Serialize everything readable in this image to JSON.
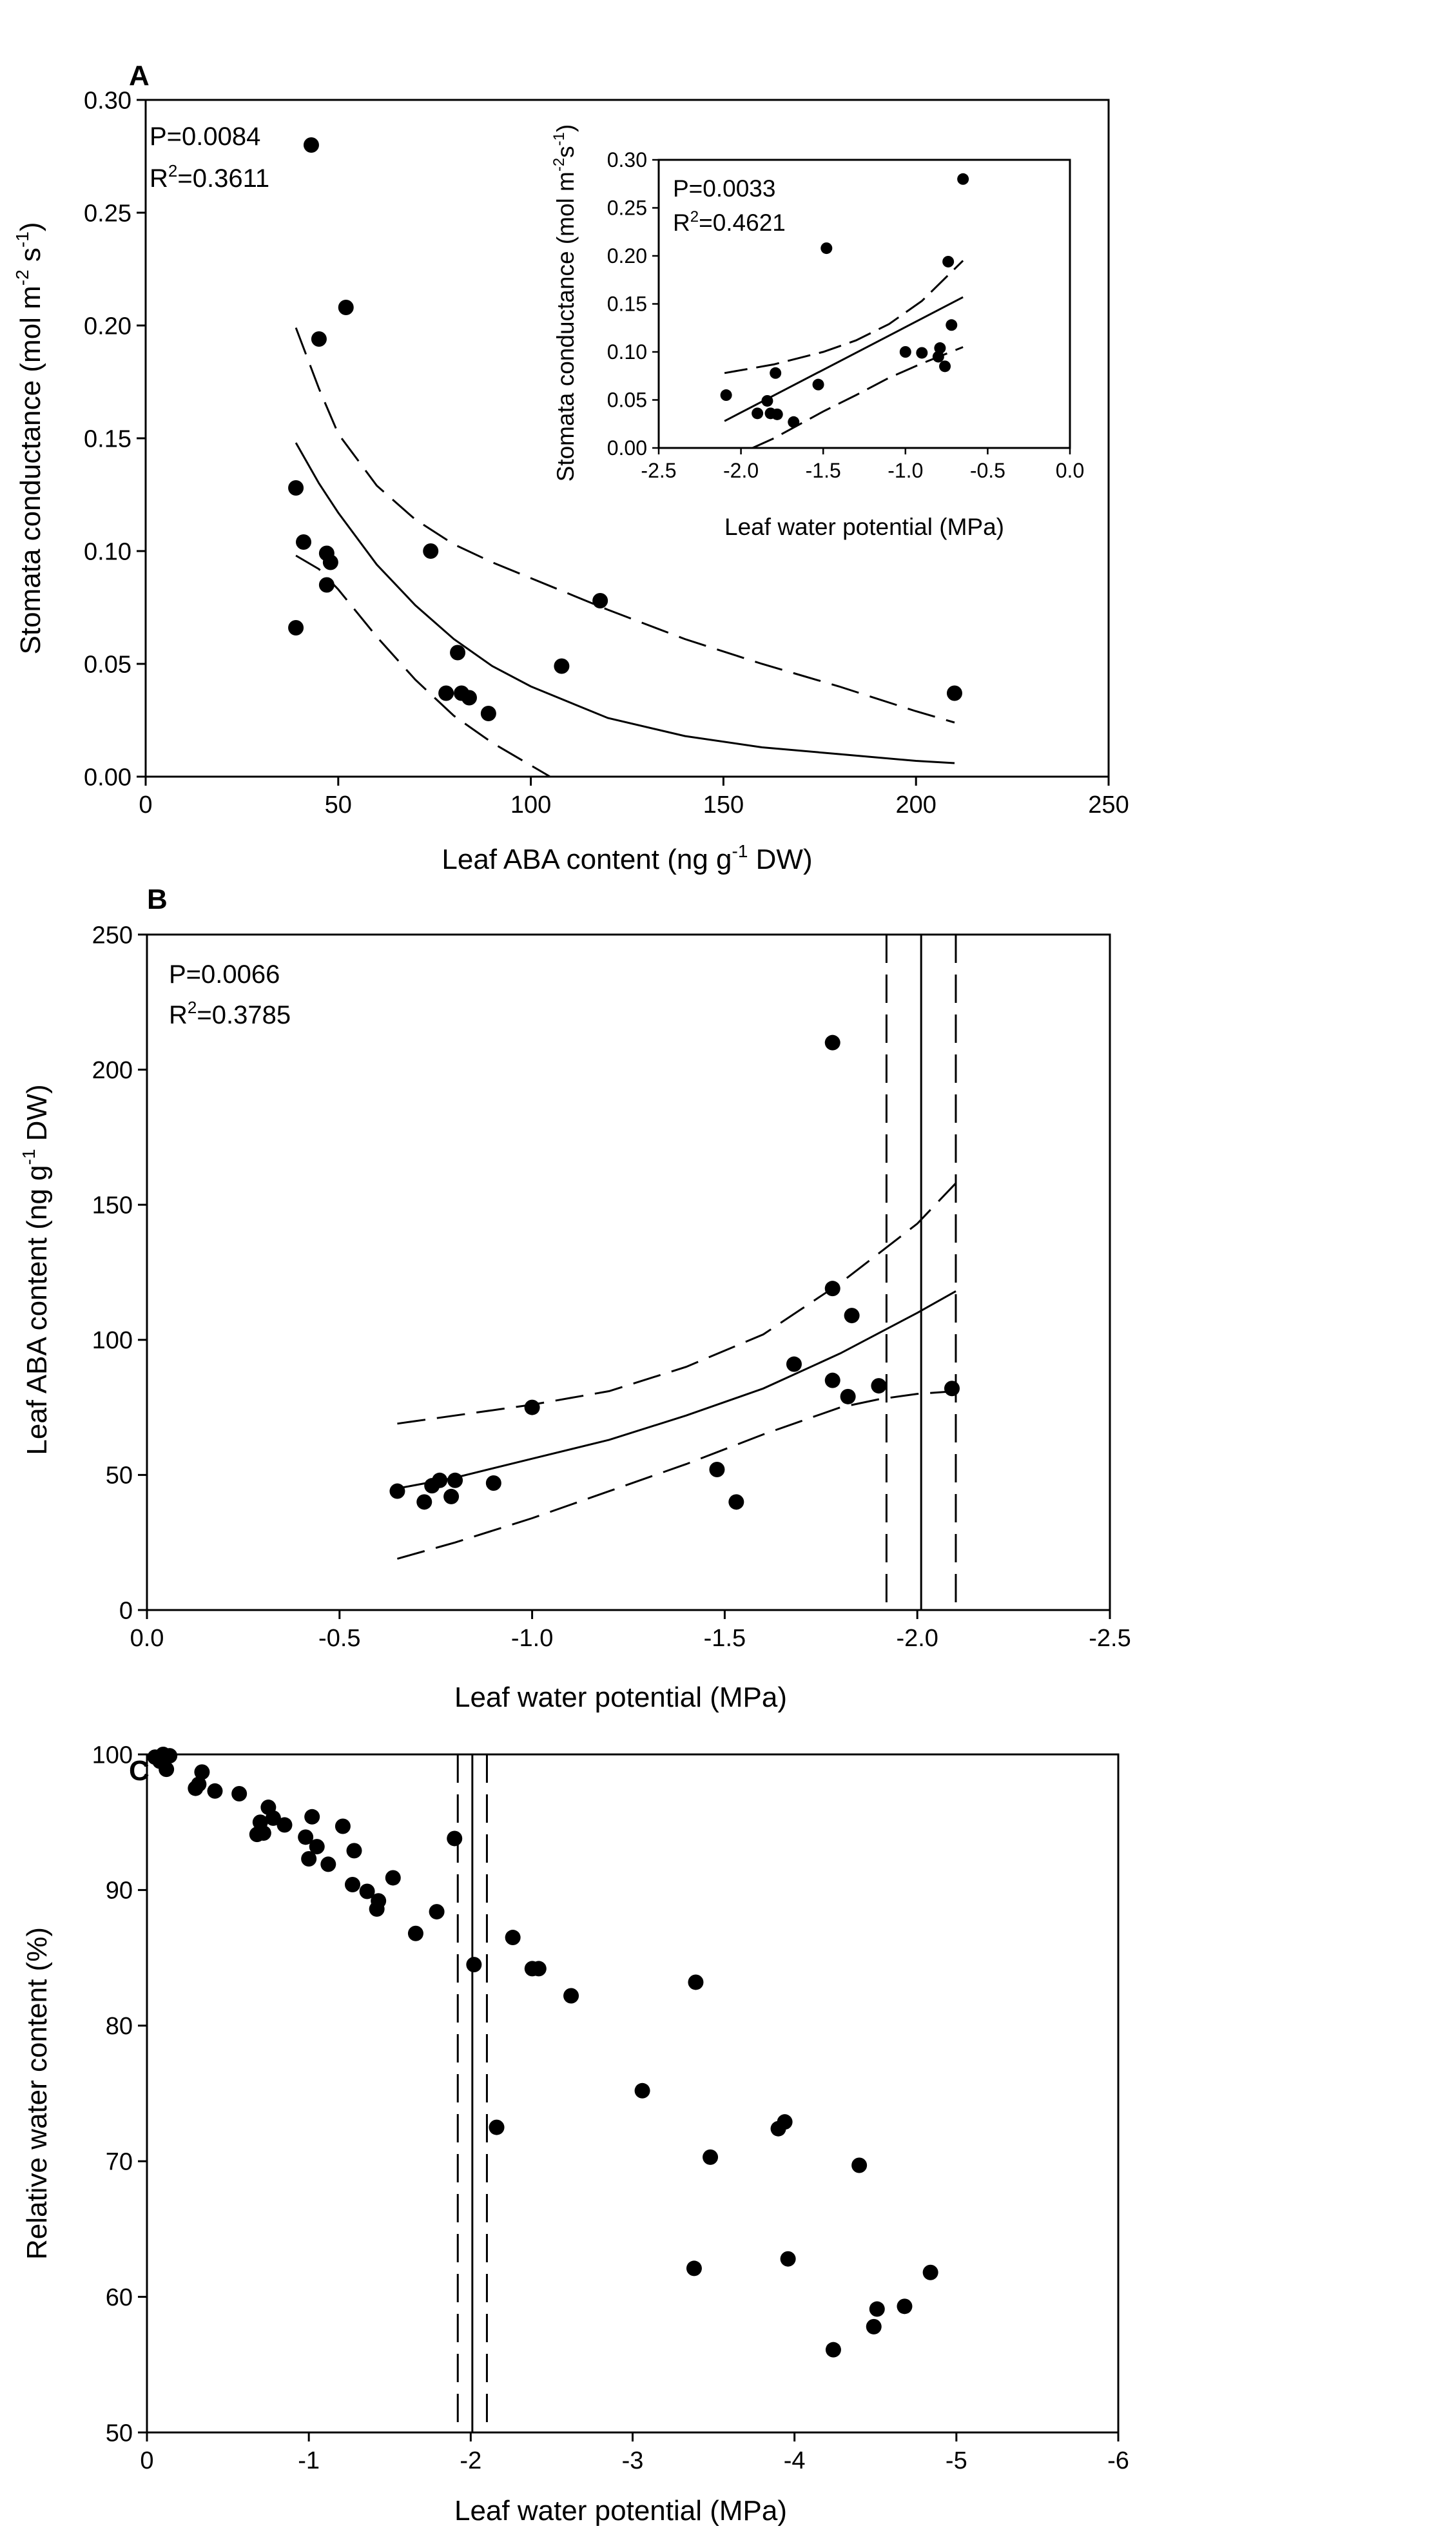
{
  "chart_data": [
    {
      "panel": "A",
      "type": "scatter",
      "title": "",
      "xlabel": "Leaf ABA content (ng g^-1 DW)",
      "ylabel": "Stomata conductance (mol m^-2 s^-1)",
      "xlim": [
        0,
        250
      ],
      "ylim": [
        0,
        0.3
      ],
      "xticks": [
        "0",
        "50",
        "100",
        "150",
        "200",
        "250"
      ],
      "yticks": [
        "0.00",
        "0.05",
        "0.10",
        "0.15",
        "0.20",
        "0.25",
        "0.30"
      ],
      "stats": [
        "P=0.0084",
        "R2=0.3611"
      ],
      "grid": false,
      "points": [
        {
          "x": 43,
          "y": 0.28
        },
        {
          "x": 45,
          "y": 0.194
        },
        {
          "x": 52,
          "y": 0.208
        },
        {
          "x": 39,
          "y": 0.128
        },
        {
          "x": 41,
          "y": 0.104
        },
        {
          "x": 47,
          "y": 0.099
        },
        {
          "x": 48,
          "y": 0.095
        },
        {
          "x": 47,
          "y": 0.085
        },
        {
          "x": 39,
          "y": 0.066
        },
        {
          "x": 74,
          "y": 0.1
        },
        {
          "x": 118,
          "y": 0.078
        },
        {
          "x": 81,
          "y": 0.055
        },
        {
          "x": 108,
          "y": 0.049
        },
        {
          "x": 78,
          "y": 0.037
        },
        {
          "x": 82,
          "y": 0.037
        },
        {
          "x": 84,
          "y": 0.035
        },
        {
          "x": 89,
          "y": 0.028
        },
        {
          "x": 210,
          "y": 0.037
        }
      ],
      "fit": {
        "x": [
          39,
          45,
          50,
          60,
          70,
          80,
          90,
          100,
          120,
          140,
          160,
          180,
          200,
          210
        ],
        "y": [
          0.148,
          0.13,
          0.117,
          0.094,
          0.076,
          0.061,
          0.049,
          0.04,
          0.026,
          0.018,
          0.013,
          0.01,
          0.007,
          0.006
        ]
      },
      "ci_upper": {
        "x": [
          39,
          45,
          50,
          60,
          70,
          80,
          90,
          100,
          120,
          140,
          160,
          180,
          200,
          210
        ],
        "y": [
          0.199,
          0.172,
          0.152,
          0.129,
          0.114,
          0.103,
          0.095,
          0.088,
          0.074,
          0.061,
          0.05,
          0.04,
          0.029,
          0.024
        ]
      },
      "ci_lower": {
        "x": [
          39,
          45,
          50,
          60,
          70,
          80,
          90,
          100,
          105
        ],
        "y": [
          0.098,
          0.092,
          0.083,
          0.062,
          0.043,
          0.027,
          0.015,
          0.005,
          0.0
        ]
      },
      "inset": {
        "type": "scatter",
        "xlabel": "Leaf water potential (MPa)",
        "ylabel": "Stomata conductance (mol m^-2 s^-1)",
        "xlim": [
          -2.5,
          0.0
        ],
        "ylim": [
          0,
          0.3
        ],
        "xticks": [
          "-2.5",
          "-2.0",
          "-1.5",
          "-1.0",
          "-0.5",
          "0.0"
        ],
        "yticks": [
          "0.00",
          "0.05",
          "0.10",
          "0.15",
          "0.20",
          "0.25",
          "0.30"
        ],
        "stats": [
          "P=0.0033",
          "R2=0.4621"
        ],
        "points": [
          {
            "x": -2.09,
            "y": 0.055
          },
          {
            "x": -1.9,
            "y": 0.036
          },
          {
            "x": -1.84,
            "y": 0.049
          },
          {
            "x": -1.82,
            "y": 0.036
          },
          {
            "x": -1.79,
            "y": 0.078
          },
          {
            "x": -1.78,
            "y": 0.035
          },
          {
            "x": -1.68,
            "y": 0.027
          },
          {
            "x": -1.53,
            "y": 0.066
          },
          {
            "x": -1.48,
            "y": 0.208
          },
          {
            "x": -1.0,
            "y": 0.1
          },
          {
            "x": -0.9,
            "y": 0.099
          },
          {
            "x": -0.8,
            "y": 0.095
          },
          {
            "x": -0.79,
            "y": 0.104
          },
          {
            "x": -0.76,
            "y": 0.085
          },
          {
            "x": -0.74,
            "y": 0.194
          },
          {
            "x": -0.72,
            "y": 0.128
          },
          {
            "x": -0.65,
            "y": 0.28
          }
        ],
        "fit": {
          "x": [
            -2.1,
            -0.65
          ],
          "y": [
            0.028,
            0.157
          ]
        },
        "ci_upper": {
          "x": [
            -2.1,
            -1.8,
            -1.5,
            -1.3,
            -1.1,
            -0.9,
            -0.65
          ],
          "y": [
            0.078,
            0.087,
            0.1,
            0.112,
            0.129,
            0.153,
            0.195
          ]
        },
        "ci_lower": {
          "x": [
            -1.93,
            -1.8,
            -1.5,
            -1.3,
            -1.1,
            -0.9,
            -0.65
          ],
          "y": [
            0.0,
            0.01,
            0.038,
            0.055,
            0.073,
            0.088,
            0.105
          ]
        }
      }
    },
    {
      "panel": "B",
      "type": "scatter",
      "title": "",
      "xlabel": "Leaf water potential (MPa)",
      "ylabel": "Leaf ABA content (ng g^-1 DW)",
      "xlim": [
        0.0,
        -2.5
      ],
      "ylim": [
        0,
        250
      ],
      "xticks": [
        "0.0",
        "-0.5",
        "-1.0",
        "-1.5",
        "-2.0",
        "-2.5"
      ],
      "yticks": [
        "0",
        "50",
        "100",
        "150",
        "200",
        "250"
      ],
      "stats": [
        "P=0.0066",
        "R2=0.3785"
      ],
      "grid": false,
      "points": [
        {
          "x": -0.65,
          "y": 44
        },
        {
          "x": -0.72,
          "y": 40
        },
        {
          "x": -0.74,
          "y": 46
        },
        {
          "x": -0.76,
          "y": 48
        },
        {
          "x": -0.79,
          "y": 42
        },
        {
          "x": -0.8,
          "y": 48
        },
        {
          "x": -0.9,
          "y": 47
        },
        {
          "x": -1.0,
          "y": 75
        },
        {
          "x": -1.48,
          "y": 52
        },
        {
          "x": -1.53,
          "y": 40
        },
        {
          "x": -1.68,
          "y": 91
        },
        {
          "x": -1.78,
          "y": 210
        },
        {
          "x": -1.78,
          "y": 119
        },
        {
          "x": -1.78,
          "y": 85
        },
        {
          "x": -1.82,
          "y": 79
        },
        {
          "x": -1.83,
          "y": 109
        },
        {
          "x": -1.9,
          "y": 83
        },
        {
          "x": -2.09,
          "y": 82
        }
      ],
      "fit": {
        "x": [
          -0.65,
          -0.8,
          -1.0,
          -1.2,
          -1.4,
          -1.6,
          -1.8,
          -2.0,
          -2.1
        ],
        "y": [
          45,
          49,
          56,
          63,
          72,
          82,
          95,
          110,
          118
        ]
      },
      "ci_upper": {
        "x": [
          -0.65,
          -0.8,
          -1.0,
          -1.2,
          -1.4,
          -1.6,
          -1.8,
          -1.9,
          -2.0,
          -2.1
        ],
        "y": [
          69,
          72,
          76,
          81,
          90,
          102,
          121,
          132,
          143,
          158
        ]
      },
      "ci_lower": {
        "x": [
          -0.65,
          -0.8,
          -1.0,
          -1.2,
          -1.4,
          -1.6,
          -1.8,
          -1.9,
          -2.0,
          -2.1
        ],
        "y": [
          19,
          25,
          34,
          44,
          54,
          65,
          75,
          78,
          80,
          81
        ]
      },
      "vlines": {
        "solid": [
          -2.01
        ],
        "dashed": [
          -1.92,
          -2.1
        ]
      }
    },
    {
      "panel": "C",
      "type": "scatter",
      "title": "",
      "xlabel": "Leaf water potential (MPa)",
      "ylabel": "Relative water content (%)",
      "xlim": [
        0,
        -6
      ],
      "ylim": [
        50,
        100
      ],
      "xticks": [
        "0",
        "-1",
        "-2",
        "-3",
        "-4",
        "-5",
        "-6"
      ],
      "yticks": [
        "50",
        "60",
        "70",
        "80",
        "90",
        "100"
      ],
      "grid": false,
      "points": [
        {
          "x": -0.05,
          "y": 99.8
        },
        {
          "x": -0.08,
          "y": 99.5
        },
        {
          "x": -0.1,
          "y": 100
        },
        {
          "x": -0.12,
          "y": 98.9
        },
        {
          "x": -0.14,
          "y": 99.9
        },
        {
          "x": -0.3,
          "y": 97.5
        },
        {
          "x": -0.32,
          "y": 97.8
        },
        {
          "x": -0.34,
          "y": 98.7
        },
        {
          "x": -0.42,
          "y": 97.3
        },
        {
          "x": -0.57,
          "y": 97.1
        },
        {
          "x": -0.68,
          "y": 94.1
        },
        {
          "x": -0.7,
          "y": 95.0
        },
        {
          "x": -0.72,
          "y": 94.2
        },
        {
          "x": -0.75,
          "y": 96.1
        },
        {
          "x": -0.78,
          "y": 95.3
        },
        {
          "x": -0.85,
          "y": 94.8
        },
        {
          "x": -0.98,
          "y": 93.9
        },
        {
          "x": -1.0,
          "y": 92.3
        },
        {
          "x": -1.02,
          "y": 95.4
        },
        {
          "x": -1.05,
          "y": 93.2
        },
        {
          "x": -1.12,
          "y": 91.9
        },
        {
          "x": -1.21,
          "y": 94.7
        },
        {
          "x": -1.27,
          "y": 90.4
        },
        {
          "x": -1.28,
          "y": 92.9
        },
        {
          "x": -1.36,
          "y": 89.9
        },
        {
          "x": -1.42,
          "y": 88.6
        },
        {
          "x": -1.43,
          "y": 89.2
        },
        {
          "x": -1.52,
          "y": 90.9
        },
        {
          "x": -1.66,
          "y": 86.8
        },
        {
          "x": -1.79,
          "y": 88.4
        },
        {
          "x": -1.9,
          "y": 93.8
        },
        {
          "x": -2.02,
          "y": 84.5
        },
        {
          "x": -2.16,
          "y": 72.5
        },
        {
          "x": -2.26,
          "y": 86.5
        },
        {
          "x": -2.38,
          "y": 84.2
        },
        {
          "x": -2.42,
          "y": 84.2
        },
        {
          "x": -2.62,
          "y": 82.2
        },
        {
          "x": -3.06,
          "y": 75.2
        },
        {
          "x": -3.38,
          "y": 62.1
        },
        {
          "x": -3.39,
          "y": 83.2
        },
        {
          "x": -3.48,
          "y": 70.3
        },
        {
          "x": -3.9,
          "y": 72.4
        },
        {
          "x": -3.94,
          "y": 72.9
        },
        {
          "x": -3.96,
          "y": 62.8
        },
        {
          "x": -4.24,
          "y": 56.1
        },
        {
          "x": -4.4,
          "y": 69.7
        },
        {
          "x": -4.49,
          "y": 57.8
        },
        {
          "x": -4.51,
          "y": 59.1
        },
        {
          "x": -4.68,
          "y": 59.3
        },
        {
          "x": -4.84,
          "y": 61.8
        }
      ],
      "vlines": {
        "solid": [
          -2.01
        ],
        "dashed": [
          -1.92,
          -2.1
        ]
      }
    }
  ]
}
